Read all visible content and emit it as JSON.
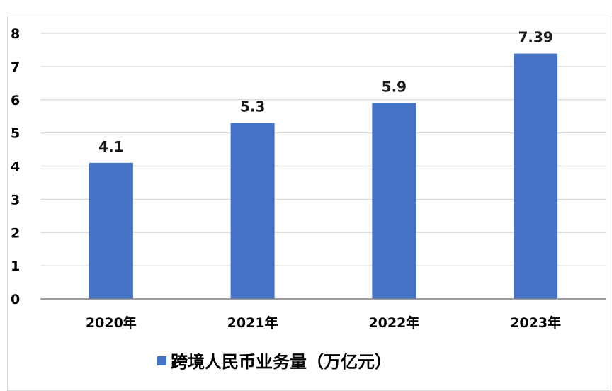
{
  "chart_data": {
    "type": "bar",
    "categories": [
      "2020年",
      "2021年",
      "2022年",
      "2023年"
    ],
    "series": [
      {
        "name": "跨境人民币业务量（万亿元）",
        "values": [
          4.1,
          5.3,
          5.9,
          7.39
        ],
        "data_labels": [
          "4.1",
          "5.3",
          "5.9",
          "7.39"
        ]
      }
    ],
    "ylim": [
      0,
      8
    ],
    "yticks": [
      "0",
      "1",
      "2",
      "3",
      "4",
      "5",
      "6",
      "7",
      "8"
    ],
    "grid": true,
    "legend_position": "bottom",
    "colors": {
      "bar": "#4472c4",
      "grid": "#d9d9d9",
      "axis": "#7f7f7f"
    }
  }
}
